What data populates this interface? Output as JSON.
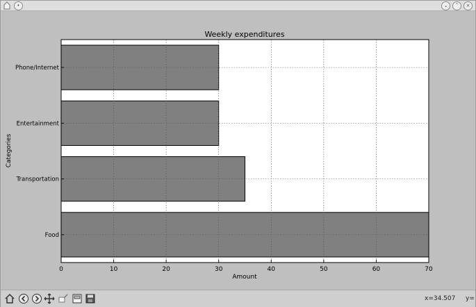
{
  "window": {
    "title_icons": [
      "app-icon",
      "pin-icon"
    ],
    "controls": [
      "minimize-icon",
      "maximize-icon",
      "close-icon"
    ]
  },
  "chart_data": {
    "type": "bar",
    "orientation": "horizontal",
    "title": "Weekly expenditures",
    "xlabel": "Amount",
    "ylabel": "Categories",
    "categories": [
      "Food",
      "Transportation",
      "Entertainment",
      "Phone/Internet"
    ],
    "values": [
      70,
      35,
      30,
      30
    ],
    "xlim": [
      0,
      70
    ],
    "xticks": [
      0,
      10,
      20,
      30,
      40,
      50,
      60,
      70
    ],
    "grid": true,
    "bar_color": "#808080"
  },
  "toolbar": {
    "buttons": [
      {
        "icon": "home-icon"
      },
      {
        "icon": "back-icon"
      },
      {
        "icon": "forward-icon"
      },
      {
        "icon": "pan-icon"
      },
      {
        "icon": "zoom-icon"
      },
      {
        "icon": "subplots-icon"
      },
      {
        "icon": "save-icon"
      }
    ],
    "x_readout": "x=34.507",
    "y_readout": "y="
  }
}
